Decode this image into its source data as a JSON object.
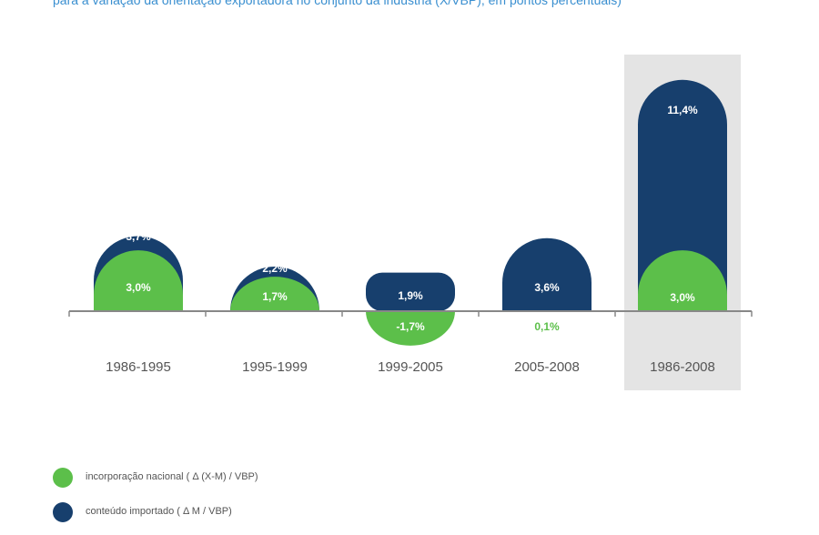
{
  "header": {
    "subtitle": "para a variação da orientação exportadora no conjunto da indústria (X/VBP), em pontos percentuais)"
  },
  "colors": {
    "nacional": "#5cbf4a",
    "importado": "#173f6d",
    "highlight_bg": "#e4e4e4",
    "axis": "#888888",
    "category_text": "#555555",
    "value_text_on_bar": "#ffffff",
    "value_text_small": "#5cbf4a"
  },
  "legend": {
    "items": [
      {
        "label": "incorporação nacional ( Δ (X-M) / VBP)",
        "color": "#5cbf4a"
      },
      {
        "label": "conteúdo importado ( Δ M / VBP)",
        "color": "#173f6d"
      }
    ]
  },
  "chart_data": {
    "type": "bar",
    "categories": [
      "1986-1995",
      "1995-1999",
      "1999-2005",
      "2005-2008",
      "1986-2008"
    ],
    "series": [
      {
        "name": "incorporação nacional ( Δ (X-M) / VBP)",
        "values": [
          3.0,
          1.7,
          -1.7,
          0.1,
          3.0
        ],
        "labels": [
          "3,0%",
          "1,7%",
          "-1,7%",
          "0,1%",
          "3,0%"
        ]
      },
      {
        "name": "conteúdo importado ( Δ M / VBP)",
        "values": [
          3.7,
          2.2,
          1.9,
          3.6,
          11.4
        ],
        "labels": [
          "3,7%",
          "2,2%",
          "1,9%",
          "3,6%",
          "11,4%"
        ]
      }
    ],
    "highlighted_category": "1986-2008",
    "grid": false,
    "legend_position": "bottom-left"
  }
}
